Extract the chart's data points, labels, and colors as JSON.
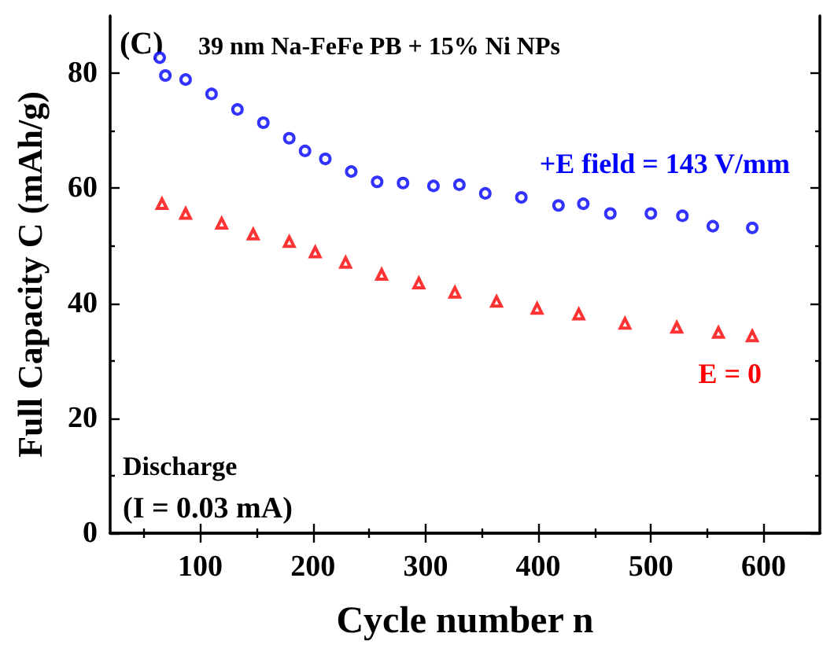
{
  "chart_data": {
    "type": "scatter",
    "title": "39 nm Na-FeFe PB + 15% Ni NPs",
    "xlabel": "Cycle number n",
    "ylabel": "Full Capacity C (mAh/g)",
    "annotations": [
      "(C)",
      "Discharge",
      "(I = 0.03 mA)"
    ],
    "xlim": [
      20,
      650
    ],
    "xticks": [
      100,
      200,
      300,
      400,
      500,
      600
    ],
    "ylim": [
      0,
      90
    ],
    "yticks": [
      0,
      20,
      40,
      60,
      80
    ],
    "grid": false,
    "legend": false,
    "series": [
      {
        "name": "+E field = 143 V/mm",
        "color": "#0000ff",
        "marker": "circle",
        "x": [
          64,
          69,
          87,
          110,
          133,
          156,
          179,
          193,
          211,
          234,
          257,
          280,
          307,
          330,
          353,
          385,
          418,
          440,
          464,
          500,
          528,
          555,
          590
        ],
        "values": [
          82.7,
          79.6,
          78.9,
          76.4,
          73.7,
          71.4,
          68.7,
          66.5,
          65.1,
          62.9,
          61.1,
          60.9,
          60.4,
          60.6,
          59.1,
          58.4,
          57.0,
          57.3,
          55.6,
          55.6,
          55.2,
          53.4,
          53.1
        ]
      },
      {
        "name": "E = 0",
        "color": "#ff0000",
        "marker": "triangle",
        "x": [
          66,
          87,
          119,
          147,
          179,
          202,
          229,
          261,
          294,
          326,
          363,
          399,
          436,
          477,
          523,
          560,
          590
        ],
        "values": [
          57.3,
          55.6,
          53.9,
          52.0,
          50.7,
          48.9,
          47.1,
          45.0,
          43.5,
          41.9,
          40.3,
          39.1,
          38.1,
          36.5,
          35.8,
          34.9,
          34.3
        ]
      }
    ]
  }
}
